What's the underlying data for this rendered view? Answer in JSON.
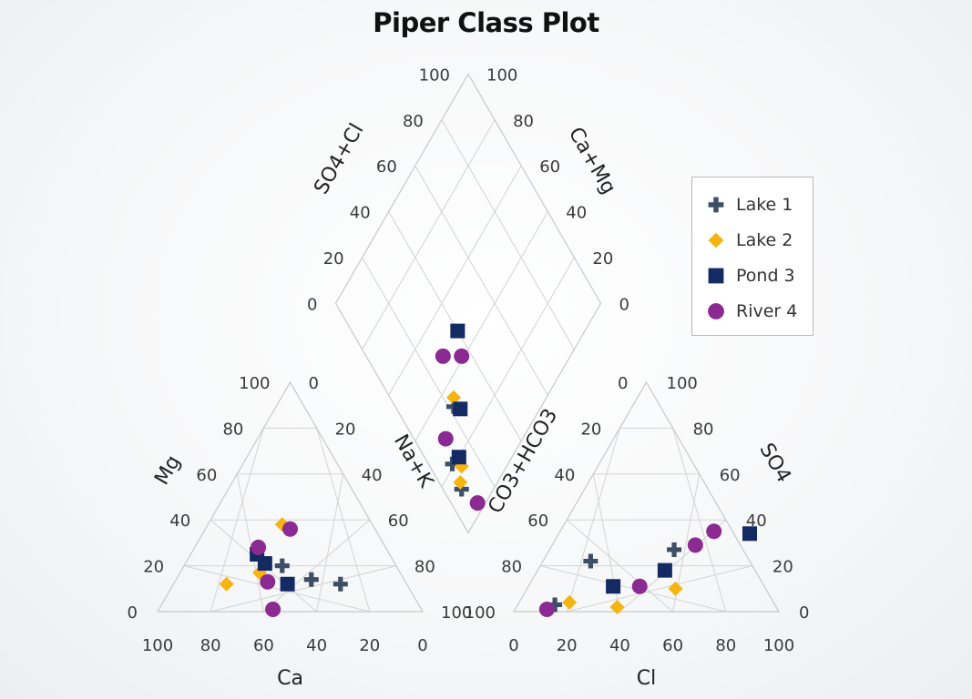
{
  "title": "Piper Class Plot",
  "chart_data": {
    "type": "scatter",
    "title": "Piper Class Plot",
    "diagram": "piper",
    "cation_triangle": {
      "xlabel": "Ca",
      "left_label": "Mg",
      "right_label": "Na+K",
      "x_ticks": [
        "100",
        "80",
        "60",
        "40",
        "20",
        "0"
      ],
      "left_ticks": [
        "0",
        "20",
        "40",
        "60",
        "80",
        "100"
      ],
      "right_ticks": [
        "0",
        "20",
        "40",
        "60",
        "80",
        "100"
      ]
    },
    "anion_triangle": {
      "xlabel": "Cl",
      "left_label": "CO3+HCO3",
      "right_label": "SO4",
      "x_ticks": [
        "0",
        "20",
        "40",
        "60",
        "80",
        "100"
      ],
      "left_ticks": [
        "0",
        "20",
        "40",
        "60",
        "80",
        "100"
      ],
      "right_ticks": [
        "0",
        "20",
        "40",
        "60",
        "80",
        "100"
      ]
    },
    "diamond": {
      "left_label": "SO4+Cl",
      "right_label": "Ca+Mg",
      "left_ticks": [
        "0",
        "20",
        "40",
        "60",
        "80",
        "100"
      ],
      "right_ticks": [
        "0",
        "20",
        "40",
        "60",
        "80",
        "100"
      ]
    },
    "series": [
      {
        "name": "Lake 1",
        "color": "#3d4f66",
        "marker": "plus",
        "cation": [
          {
            "Ca": 43,
            "Mg": 20
          },
          {
            "Ca": 35,
            "Mg": 14
          },
          {
            "Ca": 25,
            "Mg": 12
          }
        ],
        "anion": [
          {
            "Cl": 18,
            "SO4": 22
          },
          {
            "Cl": 47,
            "SO4": 27
          },
          {
            "Cl": 14,
            "SO4": 3
          }
        ],
        "diamond": [
          {
            "SO4+Cl": 22,
            "Ca+Mg": 33
          },
          {
            "SO4+Cl": 7,
            "Ca+Mg": 12
          },
          {
            "SO4+Cl": 9,
            "Ca+Mg": 21
          }
        ]
      },
      {
        "name": "Lake 2",
        "color": "#f6b40e",
        "marker": "diamond",
        "cation": [
          {
            "Ca": 68,
            "Mg": 12
          },
          {
            "Ca": 53,
            "Mg": 17
          },
          {
            "Ca": 34,
            "Mg": 38
          }
        ],
        "anion": [
          {
            "Cl": 19,
            "SO4": 4
          },
          {
            "Cl": 38,
            "SO4": 2
          },
          {
            "Cl": 56,
            "SO4": 10
          }
        ],
        "diamond": [
          {
            "SO4+Cl": 24,
            "Ca+Mg": 35
          },
          {
            "SO4+Cl": 8,
            "Ca+Mg": 14
          },
          {
            "SO4+Cl": 12,
            "Ca+Mg": 17
          }
        ]
      },
      {
        "name": "Pond 3",
        "color": "#142a63",
        "marker": "square",
        "cation": [
          {
            "Ca": 49,
            "Mg": 21
          },
          {
            "Ca": 50,
            "Mg": 25
          },
          {
            "Ca": 45,
            "Mg": 12
          }
        ],
        "anion": [
          {
            "Cl": 32,
            "SO4": 11
          },
          {
            "Cl": 48,
            "SO4": 18
          },
          {
            "Cl": 72,
            "SO4": 34
          }
        ],
        "diamond": [
          {
            "SO4+Cl": 13,
            "Ca+Mg": 20
          },
          {
            "SO4+Cl": 24,
            "Ca+Mg": 30
          },
          {
            "SO4+Cl": 40,
            "Ca+Mg": 48
          }
        ]
      },
      {
        "name": "River 4",
        "color": "#8b2a92",
        "marker": "circle",
        "cation": [
          {
            "Ca": 52,
            "Mg": 13
          },
          {
            "Ca": 48,
            "Mg": 28
          },
          {
            "Ca": 32,
            "Mg": 36
          },
          {
            "Ca": 56,
            "Mg": 1
          }
        ],
        "anion": [
          {
            "Cl": 12,
            "SO4": 1
          },
          {
            "Cl": 42,
            "SO4": 11
          },
          {
            "Cl": 54,
            "SO4": 29
          },
          {
            "Cl": 58,
            "SO4": 35
          }
        ],
        "diamond": [
          {
            "SO4+Cl": 36,
            "Ca+Mg": 41
          },
          {
            "SO4+Cl": 29,
            "Ca+Mg": 48
          },
          {
            "SO4+Cl": 12,
            "Ca+Mg": 29
          },
          {
            "SO4+Cl": 10,
            "Ca+Mg": 3
          }
        ]
      }
    ],
    "legend_position": "right",
    "grid": true
  }
}
